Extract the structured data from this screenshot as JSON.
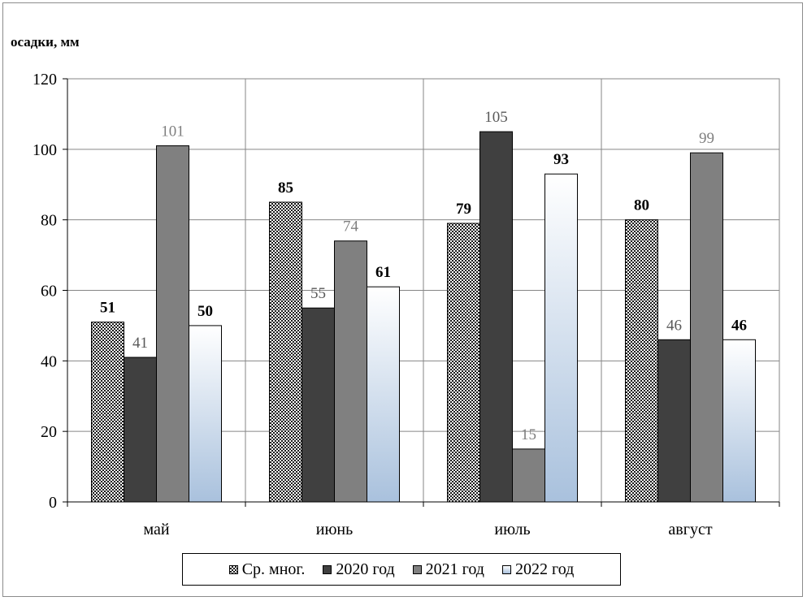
{
  "chart_data": {
    "type": "bar",
    "ylabel": "осадки, мм",
    "xlabel": "",
    "ylim": [
      0,
      120
    ],
    "yticks": [
      "0",
      "20",
      "40",
      "60",
      "80",
      "100",
      "120"
    ],
    "grid": true,
    "legend_position": "bottom",
    "categories": [
      "май",
      "июнь",
      "июль",
      "август"
    ],
    "series": [
      {
        "name": "Ср. мног.",
        "values": [
          51,
          85,
          79,
          80
        ],
        "labels": [
          "51",
          "85",
          "79",
          "80"
        ],
        "fill": "checker",
        "label_color": "#000000",
        "label_bold": true
      },
      {
        "name": "2020 год",
        "values": [
          41,
          55,
          105,
          46
        ],
        "labels": [
          "41",
          "55",
          "105",
          "46"
        ],
        "fill": "#404040",
        "label_color": "#595959",
        "label_bold": false
      },
      {
        "name": "2021 год",
        "values": [
          101,
          74,
          15,
          99
        ],
        "labels": [
          "101",
          "74",
          "15",
          "99"
        ],
        "fill": "#808080",
        "label_color": "#7f7f7f",
        "label_bold": false
      },
      {
        "name": "2022 год",
        "values": [
          50,
          61,
          93,
          46
        ],
        "labels": [
          "50",
          "61",
          "93",
          "46"
        ],
        "fill": "gradient-blue",
        "label_color": "#000000",
        "label_bold": true
      }
    ]
  }
}
